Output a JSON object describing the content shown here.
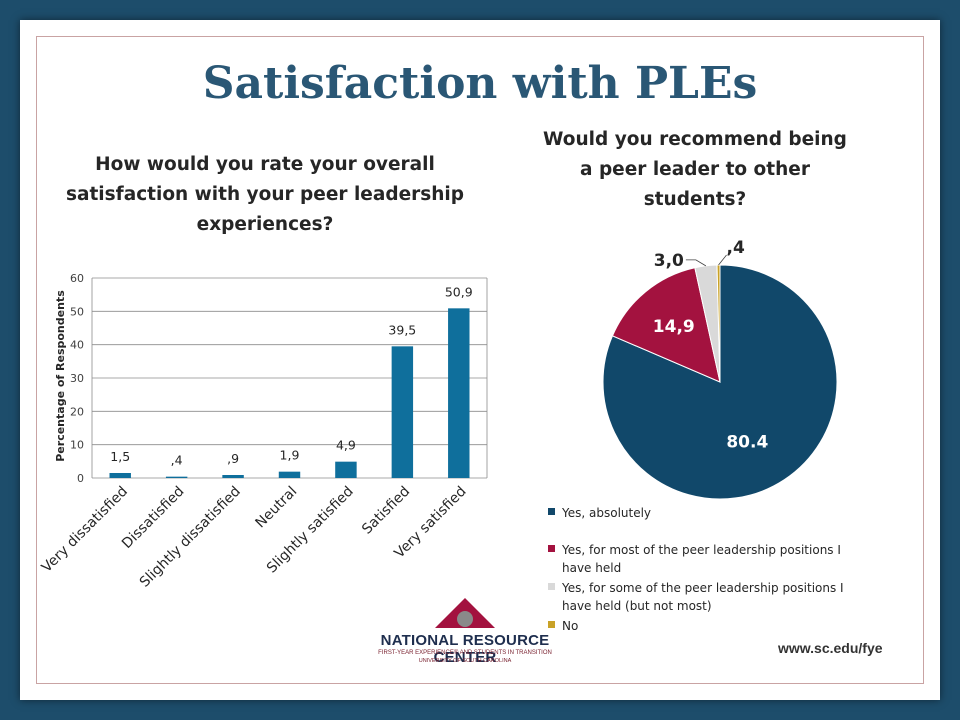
{
  "slide": {
    "title": "Satisfaction with PLEs",
    "url": "www.sc.edu/fye",
    "logo": {
      "name": "NATIONAL RESOURCE CENTER",
      "subtitle": "FIRST-YEAR EXPERIENCE® AND STUDENTS IN TRANSITION",
      "subtitle2": "UNIVERSITY OF SOUTH CAROLINA"
    }
  },
  "colors": {
    "background": "#1d4d6b",
    "title": "#2a5775",
    "bar": "#0f6f9c",
    "pie_yes_absolutely": "#11486a",
    "pie_most": "#a3123f",
    "pie_some": "#d9d9d9",
    "pie_no": "#c9a227"
  },
  "chart_data": [
    {
      "type": "bar",
      "title": "How would you rate your overall satisfaction with your peer leadership experiences?",
      "ylabel": "Percentage of Respondents",
      "xlabel": "",
      "ylim": [
        0,
        60
      ],
      "yticks": [
        "0",
        "10",
        "20",
        "30",
        "40",
        "50",
        "60"
      ],
      "grid": true,
      "categories": [
        "Very dissatisfied",
        "Dissatisfied",
        "Slightly dissatisfied",
        "Neutral",
        "Slightly satisfied",
        "Satisfied",
        "Very satisfied"
      ],
      "values": [
        1.5,
        0.4,
        0.9,
        1.9,
        4.9,
        39.5,
        50.9
      ],
      "data_labels": [
        "1,5",
        ",4",
        ",9",
        "1,9",
        "4,9",
        "39,5",
        "50,9"
      ]
    },
    {
      "type": "pie",
      "title": "Would you recommend being a peer leader to other students?",
      "legend_position": "bottom",
      "labels": [
        "Yes, absolutely",
        "Yes, for most of the peer leadership positions I have held",
        "Yes, for some of the peer leadership positions I have held (but not most)",
        "No"
      ],
      "values": [
        80.4,
        14.9,
        3.0,
        0.4
      ],
      "data_labels": [
        "80.4",
        "14,9",
        "3,0",
        ",4"
      ]
    }
  ]
}
